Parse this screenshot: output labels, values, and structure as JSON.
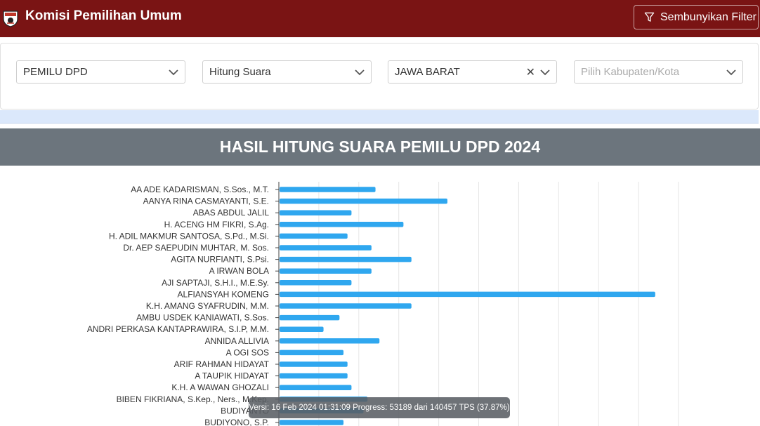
{
  "header": {
    "title": "Komisi Pemilihan Umum",
    "filter_button_label": "Sembunyikan Filter"
  },
  "filters": {
    "election": {
      "value": "PEMILU DPD"
    },
    "count_type": {
      "value": "Hitung Suara"
    },
    "province": {
      "value": "JAWA BARAT"
    },
    "regency": {
      "placeholder": "Pilih Kabupaten/Kota"
    }
  },
  "colors": {
    "header_bg": "#7a1414",
    "chart_header_bg": "#6c757d",
    "bar": "#2fa7ef"
  },
  "chart_data": {
    "type": "bar",
    "orientation": "horizontal",
    "title": "HASIL HITUNG SUARA PEMILU DPD 2024",
    "categories": [
      "AA ADE KADARISMAN, S.Sos., M.T.",
      "AANYA RINA CASMAYANTI, S.E.",
      "ABAS ABDUL JALIL",
      "H. ACENG HM FIKRI, S.Ag.",
      "H. ADIL MAKMUR SANTOSA, S.Pd., M.Si.",
      "Dr. AEP SAEPUDIN MUHTAR, M. Sos.",
      "AGITA NURFIANTI, S.Psi.",
      "A IRWAN BOLA",
      "AJI SAPTAJI, S.H.I., M.E.Sy.",
      "ALFIANSYAH KOMENG",
      "K.H. AMANG SYAFRUDIN, M.M.",
      "AMBU USDEK KANIAWATI, S.Sos.",
      "ANDRI PERKASA KANTAPRAWIRA, S.I.P, M.M.",
      "ANNIDA ALLIVIA",
      "A OGI SOS",
      "ARIF RAHMAN HIDAYAT",
      "A TAUPIK HIDAYAT",
      "K.H. A WAWAN GHOZALI",
      "BIBEN FIKRIANA, S.Kep., Ners., M.Kep.",
      "BUDIYANTO",
      "BUDIYONO, S.P."
    ],
    "values": [
      2.4,
      4.2,
      1.8,
      3.1,
      1.7,
      2.3,
      3.3,
      2.3,
      1.8,
      9.4,
      3.3,
      1.5,
      1.1,
      2.5,
      1.6,
      1.7,
      1.7,
      1.8,
      2.2,
      2.1,
      1.6
    ],
    "xlim": [
      0,
      10
    ],
    "grid": true
  },
  "tooltip": {
    "text": "Versi: 16 Feb 2024 01:31:09 Progress: 53189 dari 140457 TPS (37.87%)"
  }
}
